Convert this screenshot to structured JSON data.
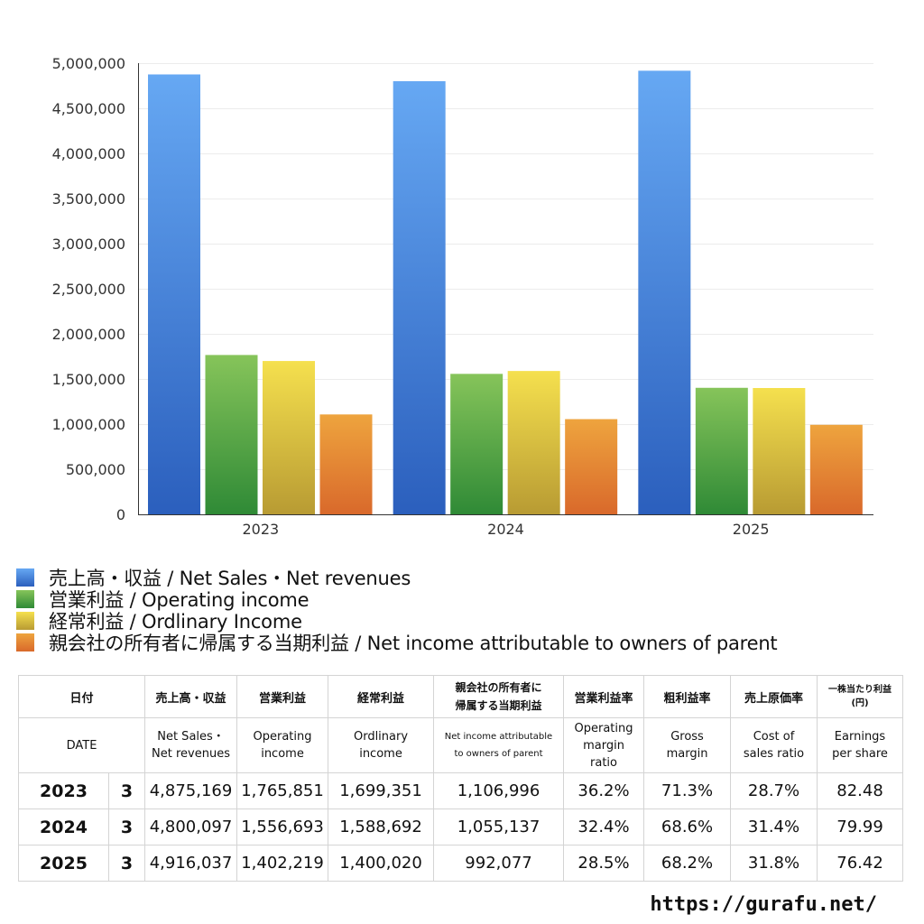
{
  "chart_data": {
    "type": "bar",
    "categories": [
      "2023",
      "2024",
      "2025"
    ],
    "series": [
      {
        "name": "売上高・収益 / Net Sales・Net revenues",
        "values": [
          4875169,
          4800097,
          4916037
        ],
        "color_top": "#66a8f3",
        "color_bottom": "#2b5fbd"
      },
      {
        "name": "営業利益 / Operating income",
        "values": [
          1765851,
          1556693,
          1402219
        ],
        "color_top": "#86c45a",
        "color_bottom": "#2f8a36"
      },
      {
        "name": "経常利益 / Ordlinary Income",
        "values": [
          1699351,
          1588692,
          1400020
        ],
        "color_top": "#f5e04e",
        "color_bottom": "#b89b33"
      },
      {
        "name": "親会社の所有者に帰属する当期利益 / Net income attributable to owners of parent",
        "values": [
          1106996,
          1055137,
          992077
        ],
        "color_top": "#eea43e",
        "color_bottom": "#d9692b"
      }
    ],
    "ylim": [
      0,
      5000000
    ],
    "yticks": [
      "0",
      "500,000",
      "1,000,000",
      "1,500,000",
      "2,000,000",
      "2,500,000",
      "3,000,000",
      "3,500,000",
      "4,000,000",
      "4,500,000",
      "5,000,000"
    ],
    "grid": true,
    "legend": "bottom"
  },
  "legend_colors": [
    "#3d7fdc",
    "#4fa046",
    "#e0c93f",
    "#e4822f"
  ],
  "table": {
    "header1": [
      "日付",
      "売上高・収益",
      "営業利益",
      "経常利益",
      "親会社の所有者に\n帰属する当期利益",
      "営業利益率",
      "粗利益率",
      "売上原価率",
      "一株当たり利益\n(円)"
    ],
    "header2": [
      "DATE",
      "Net Sales・\nNet revenues",
      "Operating\nincome",
      "Ordlinary\nincome",
      "Net income attributable\nto owners of parent",
      "Operating\nmargin\nratio",
      "Gross\nmargin",
      "Cost of\nsales ratio",
      "Earnings\nper share"
    ],
    "rows": [
      [
        "2023",
        "3",
        "4,875,169",
        "1,765,851",
        "1,699,351",
        "1,106,996",
        "36.2%",
        "71.3%",
        "28.7%",
        "82.48"
      ],
      [
        "2024",
        "3",
        "4,800,097",
        "1,556,693",
        "1,588,692",
        "1,055,137",
        "32.4%",
        "68.6%",
        "31.4%",
        "79.99"
      ],
      [
        "2025",
        "3",
        "4,916,037",
        "1,402,219",
        "1,400,020",
        "992,077",
        "28.5%",
        "68.2%",
        "31.8%",
        "76.42"
      ]
    ]
  },
  "footer": "https://gurafu.net/"
}
